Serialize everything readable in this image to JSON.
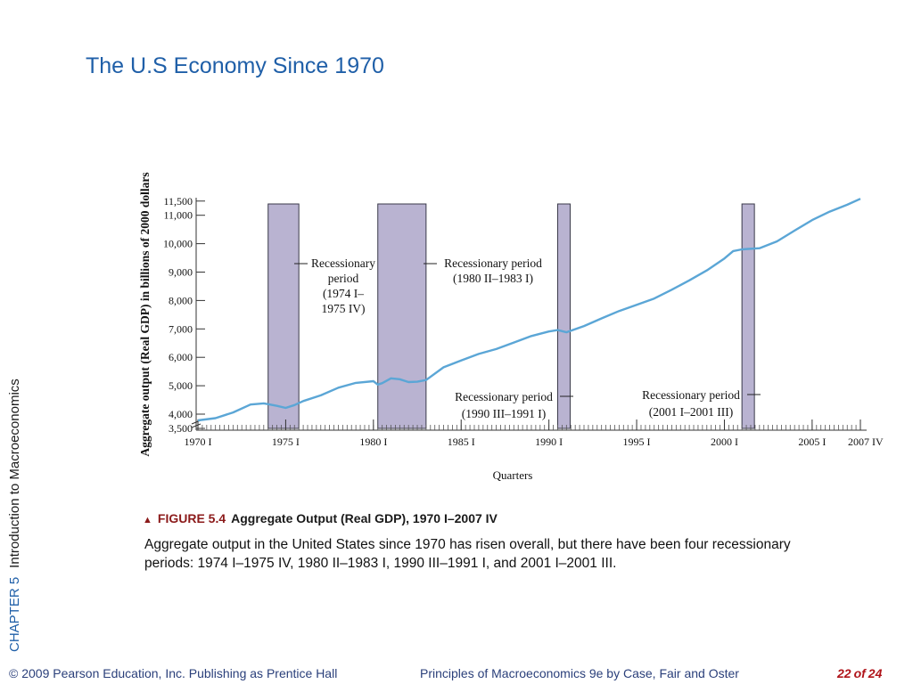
{
  "slide": {
    "title": "The U.S Economy Since 1970",
    "chapter": "CHAPTER 5",
    "chapter_subtitle": "Introduction to Macroeconomics"
  },
  "caption": {
    "figure_label": "FIGURE 5.4",
    "figure_title": "Aggregate Output (Real GDP), 1970 I–2007 IV",
    "description": "Aggregate output in the United States since 1970 has risen overall, but there have been four recessionary periods:  1974 I–1975 IV, 1980 II–1983 I, 1990 III–1991 I, and 2001 I–2001 III."
  },
  "footer": {
    "copyright": "© 2009 Pearson Education, Inc. Publishing as Prentice Hall",
    "book": "Principles of Macroeconomics 9e by Case, Fair and Oster",
    "page_current": "22",
    "page_of": "of",
    "page_total": "24"
  },
  "chart_data": {
    "type": "line",
    "title": "",
    "xlabel": "Quarters",
    "ylabel": "Aggregate output (Real GDP) in billions of 2000 dollars",
    "x_ticks": [
      {
        "label": "1970 I",
        "year": 1970
      },
      {
        "label": "1975 I",
        "year": 1975
      },
      {
        "label": "1980 I",
        "year": 1980
      },
      {
        "label": "1985 I",
        "year": 1985
      },
      {
        "label": "1990 I",
        "year": 1990
      },
      {
        "label": "1995 I",
        "year": 1995
      },
      {
        "label": "2000 I",
        "year": 2000
      },
      {
        "label": "2005 I",
        "year": 2005
      },
      {
        "label": "2007 IV",
        "year": 2007.75
      }
    ],
    "y_ticks": [
      {
        "label": "3,500",
        "value": 3500
      },
      {
        "label": "4,000",
        "value": 4000
      },
      {
        "label": "5,000",
        "value": 5000
      },
      {
        "label": "6,000",
        "value": 6000
      },
      {
        "label": "7,000",
        "value": 7000
      },
      {
        "label": "8,000",
        "value": 8000
      },
      {
        "label": "9,000",
        "value": 9000
      },
      {
        "label": "10,000",
        "value": 10000
      },
      {
        "label": "11,000",
        "value": 11000
      },
      {
        "label": "11,500",
        "value": 11500
      }
    ],
    "ylim": [
      3500,
      11500
    ],
    "xlim": [
      1970,
      2007.75
    ],
    "line_color": "#5ba6d6",
    "recession_color": "#b9b3d1",
    "series": [
      {
        "x": [
          1970.0,
          1971.0,
          1972.0,
          1973.0,
          1973.75,
          1974.0,
          1974.5,
          1975.0,
          1975.5,
          1976.0,
          1977.0,
          1978.0,
          1979.0,
          1980.0,
          1980.25,
          1980.5,
          1981.0,
          1981.5,
          1982.0,
          1982.5,
          1983.0,
          1984.0,
          1985.0,
          1986.0,
          1987.0,
          1988.0,
          1989.0,
          1990.0,
          1990.5,
          1991.0,
          1992.0,
          1993.0,
          1994.0,
          1995.0,
          1996.0,
          1997.0,
          1998.0,
          1999.0,
          2000.0,
          2000.5,
          2001.0,
          2001.5,
          2002.0,
          2003.0,
          2004.0,
          2005.0,
          2006.0,
          2007.0,
          2007.75
        ],
        "y": [
          3780,
          3860,
          4060,
          4340,
          4380,
          4350,
          4290,
          4220,
          4320,
          4460,
          4660,
          4930,
          5100,
          5160,
          5040,
          5090,
          5260,
          5230,
          5130,
          5140,
          5200,
          5650,
          5890,
          6120,
          6290,
          6520,
          6750,
          6910,
          6960,
          6880,
          7100,
          7370,
          7630,
          7850,
          8070,
          8380,
          8710,
          9060,
          9480,
          9740,
          9800,
          9820,
          9840,
          10080,
          10460,
          10830,
          11130,
          11370,
          11580
        ]
      }
    ],
    "recessions": [
      {
        "start": 1974.0,
        "end": 1975.75
      },
      {
        "start": 1980.25,
        "end": 1983.0
      },
      {
        "start": 1990.5,
        "end": 1991.0
      },
      {
        "start": 2001.0,
        "end": 2001.5
      }
    ],
    "annotations": [
      {
        "lines": [
          "Recessionary",
          "period",
          "(1974 I–",
          "1975 IV)"
        ]
      },
      {
        "lines": [
          "Recessionary period",
          "(1980 II–1983 I)"
        ]
      },
      {
        "lines": [
          "Recessionary period",
          "(1990 III–1991 I)"
        ]
      },
      {
        "lines": [
          "Recessionary period",
          "(2001 I–2001 III)"
        ]
      }
    ],
    "grid": false,
    "legend": "none"
  }
}
